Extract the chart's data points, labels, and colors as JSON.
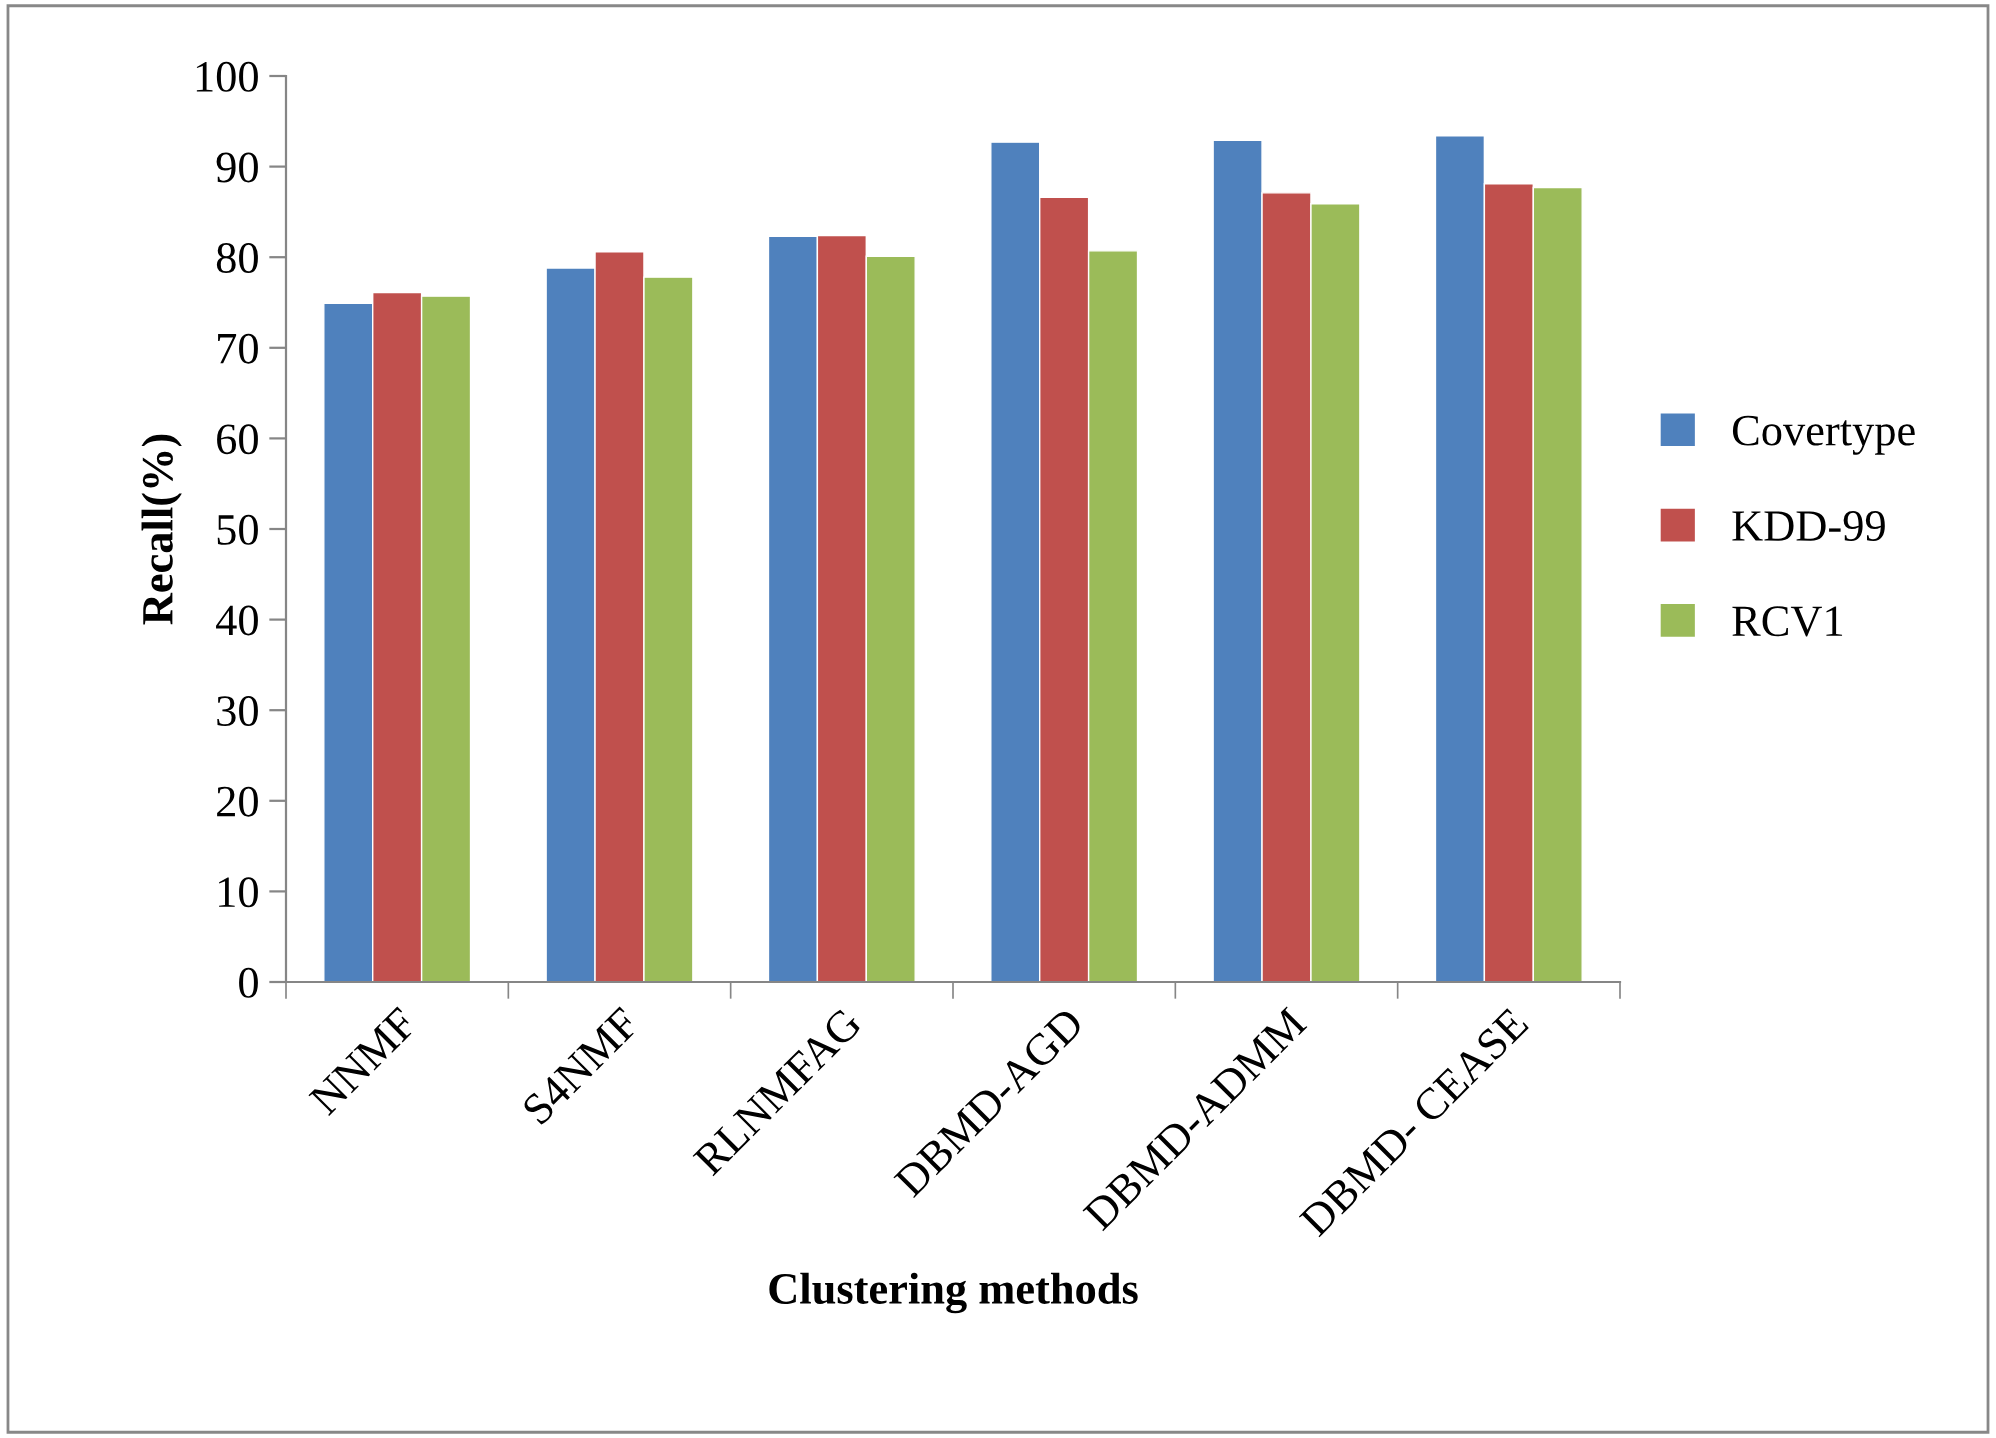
{
  "chart_data": {
    "type": "bar",
    "xlabel": "Clustering methods",
    "ylabel": "Recall(%)",
    "categories": [
      "NNMF",
      "S4NMF",
      "RLNMFAG",
      "DBMD-AGD",
      "DBMD-ADMM",
      "DBMD- CEASE"
    ],
    "series": [
      {
        "name": "Covertype",
        "color": "#4f81bd",
        "values": [
          74.9,
          78.8,
          82.3,
          92.7,
          92.9,
          93.4
        ]
      },
      {
        "name": "KDD-99",
        "color": "#c0504d",
        "values": [
          76.1,
          80.6,
          82.4,
          86.6,
          87.1,
          88.1
        ]
      },
      {
        "name": "RCV1",
        "color": "#9bbb59",
        "values": [
          75.7,
          77.8,
          80.1,
          80.7,
          85.9,
          87.7
        ]
      }
    ],
    "ylim": [
      0,
      100
    ],
    "yticks": [
      0,
      10,
      20,
      30,
      40,
      50,
      60,
      70,
      80,
      90,
      100
    ],
    "grid": false,
    "legend": "right"
  }
}
